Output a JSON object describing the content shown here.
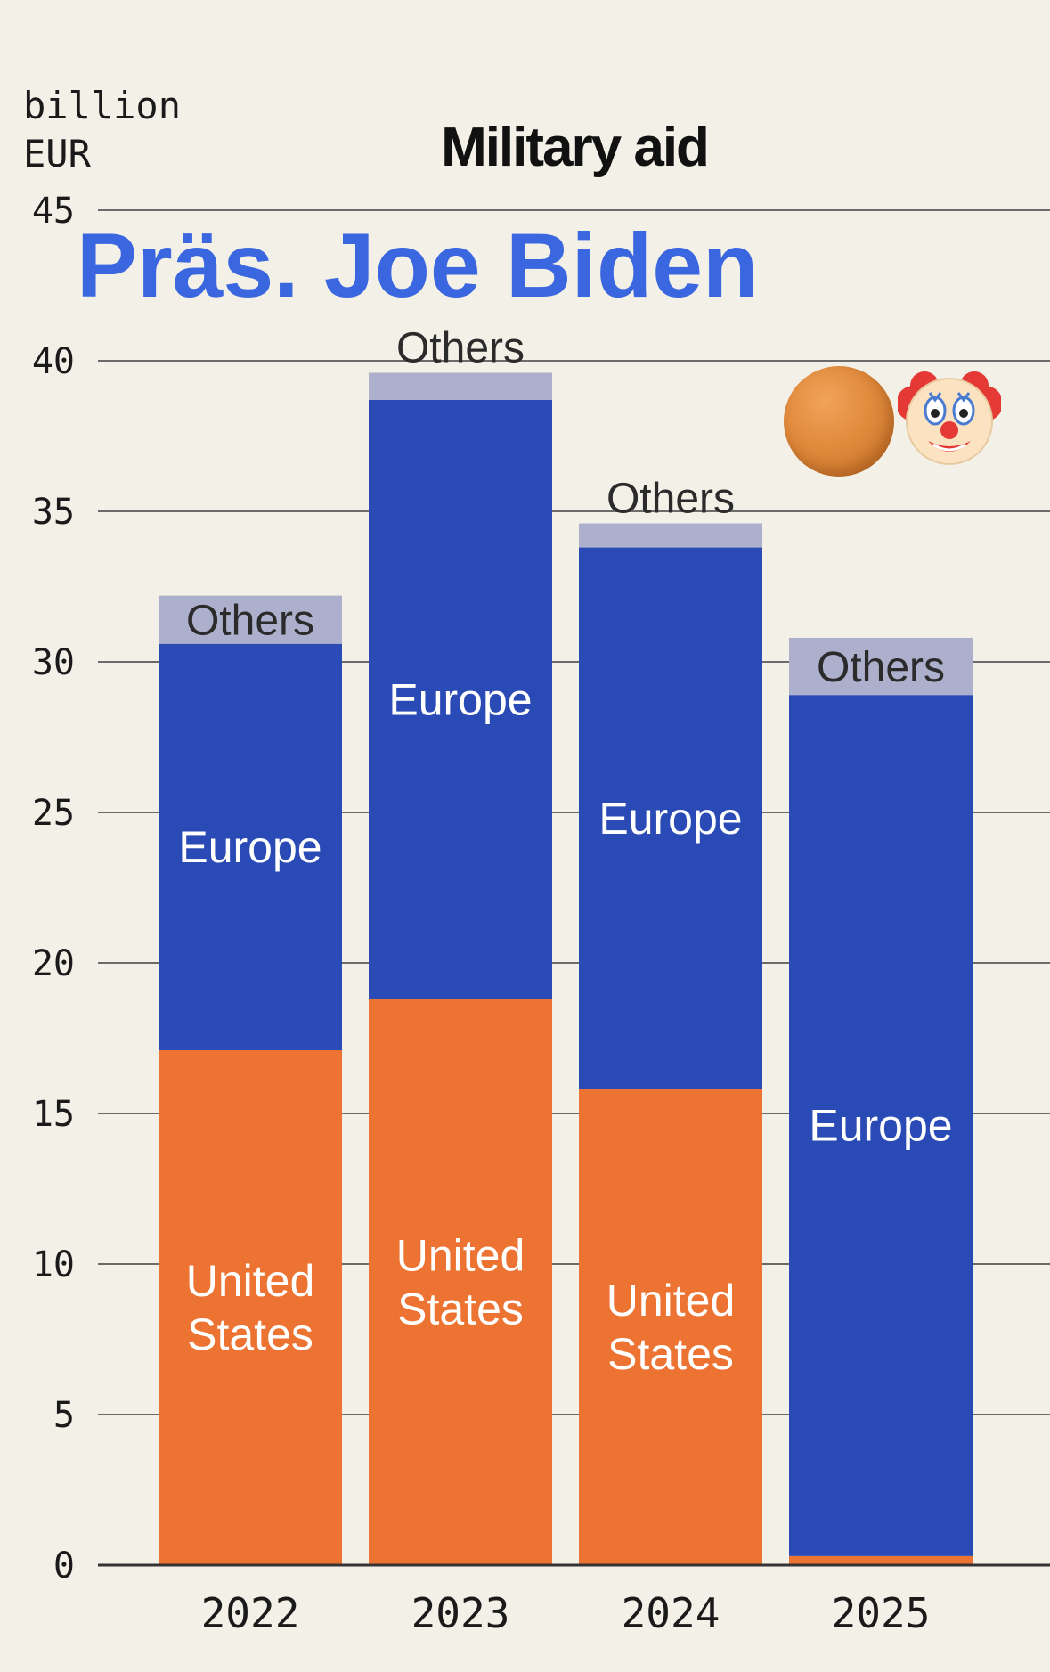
{
  "chart_data": {
    "type": "bar",
    "stacked": true,
    "title": "Military aid",
    "unit_label": [
      "billion",
      "EUR"
    ],
    "categories": [
      "2022",
      "2023",
      "2024",
      "2025"
    ],
    "series": [
      {
        "name": "United States",
        "color": "#ed7332",
        "values": [
          17.1,
          18.8,
          15.8,
          0.3
        ],
        "labels": [
          "United States",
          "United States",
          "United States",
          ""
        ]
      },
      {
        "name": "Europe",
        "color": "#2a4bb5",
        "values": [
          13.5,
          19.9,
          18.0,
          28.6
        ],
        "labels": [
          "Europe",
          "Europe",
          "Europe",
          "Europe"
        ]
      },
      {
        "name": "Others",
        "color": "#adb0cc",
        "values": [
          1.6,
          0.9,
          0.8,
          1.9
        ],
        "labels": [
          "Others",
          "Others",
          "Others",
          "Others"
        ]
      }
    ],
    "ylim": [
      0,
      45
    ],
    "yticks": [
      0,
      5,
      10,
      15,
      20,
      25,
      30,
      35,
      40,
      45
    ],
    "grid": true,
    "legend": "none"
  },
  "overlay": {
    "caption": "Präs. Joe Biden",
    "caption_color": "#3a66e0",
    "emoji": [
      "orange-circle-icon",
      "clown-face-icon"
    ]
  }
}
